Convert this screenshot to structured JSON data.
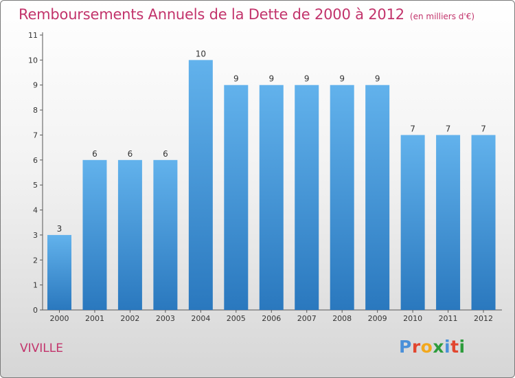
{
  "header": {
    "title": "Remboursements Annuels de la Dette de 2000 à 2012",
    "subtitle": "(en milliers d'€)"
  },
  "footer": {
    "commune": "VIVILLE",
    "logo_letters": [
      "P",
      "r",
      "o",
      "x",
      "i",
      "t",
      "i"
    ],
    "logo_colors": [
      "#4a90d9",
      "#e2462f",
      "#f2a81d",
      "#2d9c3c",
      "#4a90d9",
      "#e2462f",
      "#2d9c3c"
    ]
  },
  "colors": {
    "bar_top": "#62b2ec",
    "bar_bottom": "#2a78be",
    "axis": "#555555",
    "text": "#333333",
    "accent": "#c2336b"
  },
  "chart_data": {
    "type": "bar",
    "title": "Remboursements Annuels de la Dette de 2000 à 2012",
    "subtitle": "(en milliers d'€)",
    "categories": [
      "2000",
      "2001",
      "2002",
      "2003",
      "2004",
      "2005",
      "2006",
      "2007",
      "2008",
      "2009",
      "2010",
      "2011",
      "2012"
    ],
    "values": [
      3,
      6,
      6,
      6,
      10,
      9,
      9,
      9,
      9,
      9,
      7,
      7,
      7
    ],
    "yticks": [
      0,
      1,
      2,
      3,
      4,
      5,
      6,
      7,
      8,
      9,
      10,
      11
    ],
    "ylim": [
      0,
      11
    ],
    "data_labels": true,
    "grid": false
  }
}
